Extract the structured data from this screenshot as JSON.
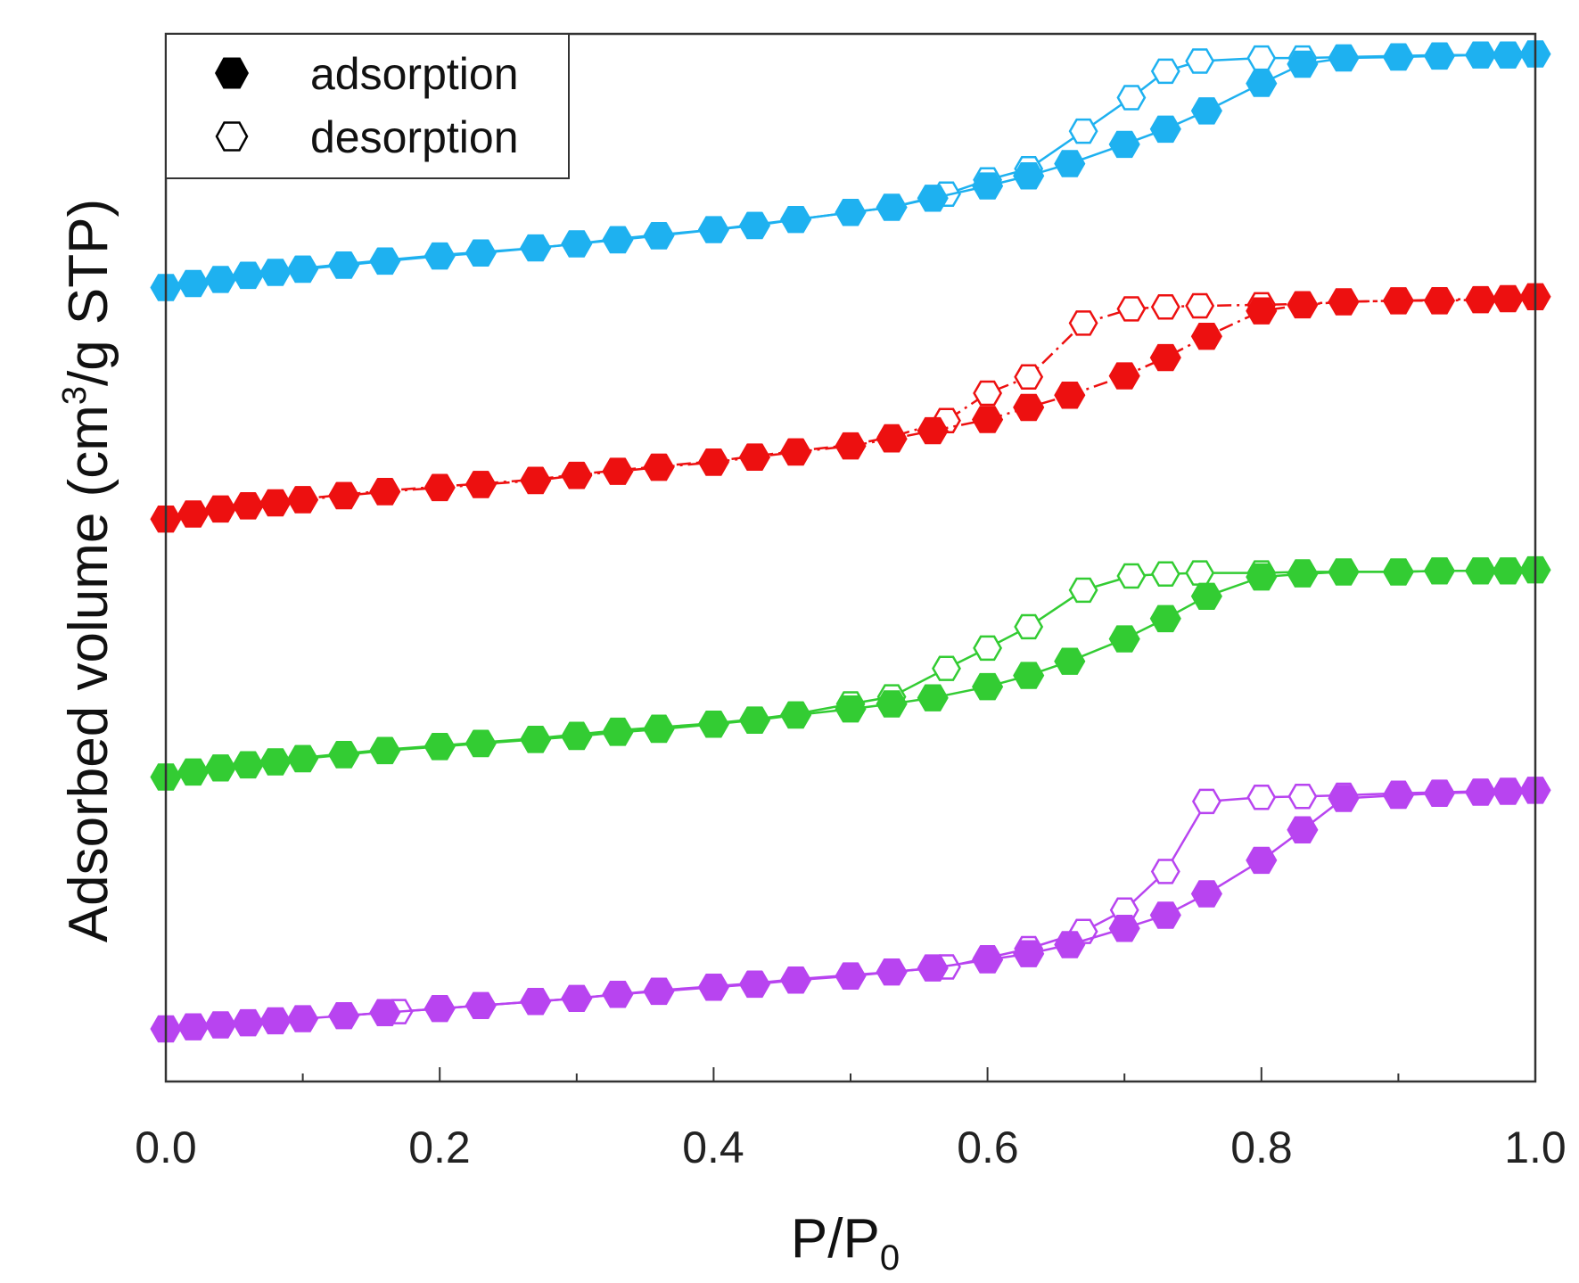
{
  "chart_data": {
    "type": "line",
    "title": "",
    "xlabel": "P/P",
    "xlabel_subscript": "0",
    "ylabel_prefix": "Adsorbed volume  (cm",
    "ylabel_superscript": "3",
    "ylabel_suffix": "/g STP)",
    "xlim": [
      0.0,
      1.0
    ],
    "ylim": [
      0,
      100
    ],
    "y_ticks_labeled": false,
    "grid": false,
    "x_ticks": [
      "0.0",
      "0.2",
      "0.4",
      "0.6",
      "0.8",
      "1.0"
    ],
    "legend": {
      "position": "top-left",
      "entries": [
        {
          "label": "adsorption",
          "marker": "filled-hexagon"
        },
        {
          "label": "desorption",
          "marker": "open-hexagon"
        }
      ]
    },
    "series": [
      {
        "name": "cyan adsorption",
        "color": "#1EB1F0",
        "kind": "adsorption",
        "line": "solid",
        "x": [
          0.0,
          0.02,
          0.04,
          0.06,
          0.08,
          0.1,
          0.13,
          0.16,
          0.2,
          0.23,
          0.27,
          0.3,
          0.33,
          0.36,
          0.4,
          0.43,
          0.46,
          0.5,
          0.53,
          0.56,
          0.6,
          0.63,
          0.66,
          0.7,
          0.73,
          0.76,
          0.8,
          0.83,
          0.86,
          0.9,
          0.93,
          0.96,
          0.98,
          1.0
        ],
        "y": [
          76.6,
          77.0,
          77.4,
          77.8,
          78.1,
          78.4,
          78.8,
          79.2,
          79.7,
          80.0,
          80.5,
          80.9,
          81.3,
          81.7,
          82.3,
          82.7,
          83.3,
          84.0,
          84.5,
          85.4,
          86.6,
          87.6,
          88.8,
          90.7,
          92.2,
          94.0,
          96.7,
          98.6,
          99.2,
          99.3,
          99.4,
          99.5,
          99.5,
          99.6
        ]
      },
      {
        "name": "cyan desorption",
        "color": "#1EB1F0",
        "kind": "desorption",
        "line": "solid",
        "x": [
          1.0,
          0.96,
          0.93,
          0.9,
          0.86,
          0.83,
          0.8,
          0.755,
          0.73,
          0.705,
          0.67,
          0.63,
          0.6,
          0.57,
          0.53,
          0.5,
          0.46,
          0.43,
          0.4,
          0.36,
          0.33,
          0.3,
          0.27,
          0.23,
          0.2,
          0.16,
          0.13,
          0.1,
          0.06
        ],
        "y": [
          99.6,
          99.5,
          99.5,
          99.4,
          99.3,
          99.2,
          99.2,
          98.9,
          97.9,
          95.3,
          92.0,
          88.3,
          87.2,
          85.8,
          84.5,
          84.0,
          83.3,
          82.8,
          82.3,
          81.8,
          81.4,
          80.9,
          80.5,
          80.1,
          79.8,
          79.3,
          78.9,
          78.5,
          77.9
        ]
      },
      {
        "name": "red adsorption",
        "color": "#ED1010",
        "kind": "adsorption",
        "line": "dash-dot",
        "x": [
          0.0,
          0.02,
          0.04,
          0.06,
          0.08,
          0.1,
          0.13,
          0.16,
          0.2,
          0.23,
          0.27,
          0.3,
          0.33,
          0.36,
          0.4,
          0.43,
          0.46,
          0.5,
          0.53,
          0.56,
          0.6,
          0.63,
          0.66,
          0.7,
          0.73,
          0.76,
          0.8,
          0.83,
          0.86,
          0.9,
          0.93,
          0.96,
          0.98,
          1.0
        ],
        "y": [
          53.8,
          54.3,
          54.8,
          55.1,
          55.4,
          55.7,
          56.1,
          56.5,
          56.9,
          57.2,
          57.6,
          58.1,
          58.5,
          58.9,
          59.4,
          59.9,
          60.4,
          61.0,
          61.7,
          62.5,
          63.6,
          64.8,
          66.0,
          67.9,
          69.7,
          71.8,
          74.3,
          74.9,
          75.2,
          75.3,
          75.3,
          75.4,
          75.5,
          75.7
        ]
      },
      {
        "name": "red desorption",
        "color": "#ED1010",
        "kind": "desorption",
        "line": "dash-dot",
        "x": [
          1.0,
          0.96,
          0.93,
          0.9,
          0.86,
          0.83,
          0.8,
          0.755,
          0.73,
          0.705,
          0.67,
          0.63,
          0.6,
          0.57,
          0.53,
          0.5,
          0.46,
          0.43,
          0.4,
          0.36,
          0.33,
          0.3,
          0.27,
          0.23,
          0.2,
          0.16,
          0.13,
          0.1,
          0.06
        ],
        "y": [
          75.7,
          75.5,
          75.4,
          75.3,
          75.2,
          75.0,
          74.9,
          74.8,
          74.7,
          74.5,
          73.1,
          67.8,
          66.2,
          63.5,
          61.9,
          61.1,
          60.5,
          60.0,
          59.5,
          59.0,
          58.6,
          58.2,
          57.7,
          57.3,
          57.0,
          56.6,
          56.2,
          55.8,
          55.2
        ]
      },
      {
        "name": "green adsorption",
        "color": "#33CC33",
        "kind": "adsorption",
        "line": "solid",
        "x": [
          0.0,
          0.02,
          0.04,
          0.06,
          0.08,
          0.1,
          0.13,
          0.16,
          0.2,
          0.23,
          0.27,
          0.3,
          0.33,
          0.36,
          0.4,
          0.43,
          0.46,
          0.5,
          0.53,
          0.56,
          0.6,
          0.63,
          0.66,
          0.7,
          0.73,
          0.76,
          0.8,
          0.83,
          0.86,
          0.9,
          0.93,
          0.96,
          0.98,
          1.0
        ],
        "y": [
          28.4,
          28.9,
          29.3,
          29.6,
          29.9,
          30.2,
          30.6,
          31.0,
          31.4,
          31.7,
          32.1,
          32.4,
          32.8,
          33.1,
          33.6,
          34.0,
          34.5,
          35.1,
          35.6,
          36.2,
          37.3,
          38.4,
          39.8,
          42.0,
          44.0,
          46.2,
          48.1,
          48.4,
          48.6,
          48.6,
          48.7,
          48.7,
          48.7,
          48.8
        ]
      },
      {
        "name": "green desorption",
        "color": "#33CC33",
        "kind": "desorption",
        "line": "solid",
        "x": [
          1.0,
          0.96,
          0.93,
          0.9,
          0.86,
          0.83,
          0.8,
          0.755,
          0.73,
          0.705,
          0.67,
          0.63,
          0.6,
          0.57,
          0.53,
          0.5,
          0.46,
          0.43,
          0.4,
          0.36,
          0.33,
          0.3,
          0.27,
          0.23,
          0.2,
          0.16,
          0.13,
          0.1,
          0.06
        ],
        "y": [
          48.8,
          48.7,
          48.7,
          48.6,
          48.6,
          48.6,
          48.5,
          48.5,
          48.4,
          48.2,
          46.8,
          43.2,
          41.1,
          39.1,
          36.3,
          35.6,
          34.6,
          34.1,
          33.7,
          33.3,
          33.0,
          32.6,
          32.2,
          31.8,
          31.5,
          31.1,
          30.7,
          30.3,
          29.7
        ]
      },
      {
        "name": "purple adsorption",
        "color": "#B844F0",
        "kind": "adsorption",
        "line": "solid",
        "x": [
          0.0,
          0.02,
          0.04,
          0.06,
          0.08,
          0.1,
          0.13,
          0.16,
          0.2,
          0.23,
          0.27,
          0.3,
          0.33,
          0.36,
          0.4,
          0.43,
          0.46,
          0.5,
          0.53,
          0.56,
          0.6,
          0.63,
          0.66,
          0.7,
          0.73,
          0.76,
          0.8,
          0.83,
          0.86,
          0.9,
          0.93,
          0.96,
          0.98,
          1.0
        ],
        "y": [
          3.6,
          3.8,
          4.0,
          4.2,
          4.4,
          4.6,
          4.9,
          5.2,
          5.6,
          5.9,
          6.3,
          6.6,
          7.0,
          7.3,
          7.7,
          8.0,
          8.4,
          8.8,
          9.2,
          9.6,
          10.4,
          11.0,
          11.9,
          13.5,
          14.8,
          16.9,
          20.2,
          23.2,
          26.3,
          26.6,
          26.8,
          26.9,
          27.0,
          27.1
        ]
      },
      {
        "name": "purple desorption",
        "color": "#B844F0",
        "kind": "desorption",
        "line": "solid",
        "x": [
          1.0,
          0.96,
          0.93,
          0.9,
          0.86,
          0.83,
          0.8,
          0.76,
          0.73,
          0.7,
          0.67,
          0.63,
          0.6,
          0.57,
          0.53,
          0.5,
          0.46,
          0.43,
          0.4,
          0.36,
          0.33,
          0.3,
          0.27,
          0.23,
          0.2,
          0.17,
          0.13
        ],
        "y": [
          27.1,
          27.0,
          26.9,
          26.8,
          26.6,
          26.5,
          26.4,
          26.0,
          19.1,
          15.3,
          13.2,
          11.5,
          10.6,
          9.7,
          9.2,
          8.9,
          8.5,
          8.1,
          7.8,
          7.4,
          7.0,
          6.6,
          6.3,
          5.9,
          5.6,
          5.3,
          4.9
        ]
      }
    ]
  }
}
